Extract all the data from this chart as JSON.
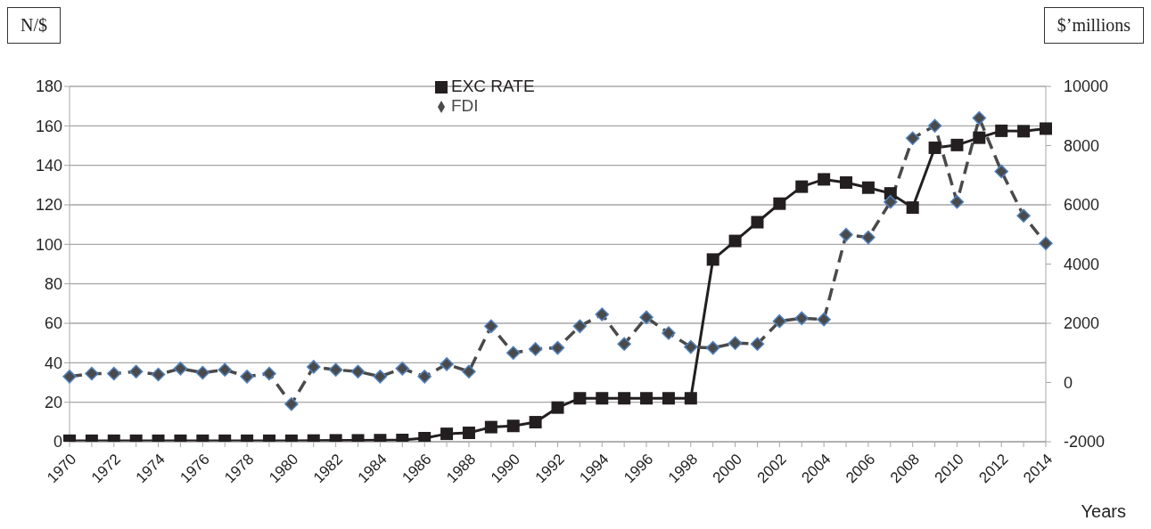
{
  "chart_data": {
    "type": "line",
    "ylabel": "N/$",
    "y2label": "$’millions",
    "xlabel": "Years",
    "categories": [
      "1970",
      null,
      "1972",
      null,
      "1974",
      null,
      "1976",
      null,
      "1978",
      null,
      "1980",
      null,
      "1982",
      null,
      "1984",
      null,
      "1986",
      null,
      "1988",
      null,
      "1990",
      null,
      "1992",
      null,
      "1994",
      null,
      "1996",
      null,
      "1998",
      null,
      "2000",
      null,
      "2002",
      null,
      "2004",
      null,
      "2006",
      null,
      "2008",
      null,
      "2010",
      null,
      "2012",
      null,
      "2014"
    ],
    "series": [
      {
        "name": "EXC RATE",
        "color": "#231f20",
        "marker": "square",
        "line_style": "solid",
        "values": [
          0.5,
          0.5,
          0.5,
          0.5,
          0.5,
          0.5,
          0.5,
          0.5,
          0.5,
          0.5,
          0.5,
          0.6,
          0.7,
          0.7,
          0.8,
          0.9,
          1.8,
          4,
          4.5,
          7.4,
          8,
          9.9,
          17.3,
          22,
          22,
          22,
          22,
          22,
          22,
          92.3,
          101.7,
          111.2,
          120.6,
          129.2,
          132.9,
          131.3,
          128.7,
          125.8,
          118.6,
          148.9,
          150.3,
          154,
          157.5,
          157.3,
          158.6
        ]
      },
      {
        "name": "FDI",
        "color": "#4a4a4a",
        "marker": "diamond",
        "line_style": "dashed",
        "axis": "y2",
        "values": [
          200,
          300,
          300,
          370,
          270,
          470,
          330,
          430,
          200,
          300,
          -730,
          530,
          430,
          370,
          200,
          470,
          200,
          620,
          370,
          1900,
          1000,
          1130,
          1170,
          1900,
          2300,
          1300,
          2200,
          1670,
          1200,
          1170,
          1330,
          1300,
          2070,
          2170,
          2130,
          4990,
          4900,
          6100,
          8250,
          8670,
          6100,
          8930,
          7130,
          5630,
          4700
        ]
      }
    ],
    "ylim": [
      0,
      180
    ],
    "yticks": [
      0,
      20,
      40,
      60,
      80,
      100,
      120,
      140,
      160,
      180
    ],
    "y2lim": [
      -2000,
      10000
    ],
    "y2ticks": [
      -2000,
      0,
      2000,
      4000,
      6000,
      8000,
      10000
    ],
    "grid": "y",
    "legend": "top"
  }
}
